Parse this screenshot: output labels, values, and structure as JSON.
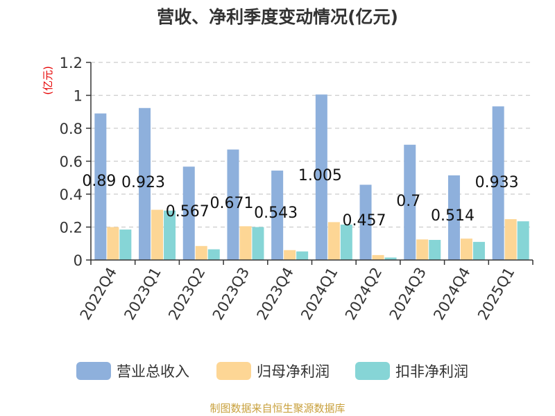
{
  "chart_data": {
    "type": "bar",
    "title": "营收、净利季度变动情况(亿元)",
    "ylabel": "(亿元)",
    "ylim": [
      0,
      1.2
    ],
    "yticks": [
      "0",
      "0.2",
      "0.4",
      "0.6",
      "0.8",
      "1",
      "1.2"
    ],
    "grid": true,
    "legend_position": "bottom",
    "categories": [
      "2022Q4",
      "2023Q1",
      "2023Q2",
      "2023Q3",
      "2023Q4",
      "2024Q1",
      "2024Q2",
      "2024Q3",
      "2024Q4",
      "2025Q1"
    ],
    "series": [
      {
        "name": "营业总收入",
        "color": "#8eb0dc",
        "values": [
          0.89,
          0.923,
          0.567,
          0.671,
          0.543,
          1.005,
          0.457,
          0.7,
          0.514,
          0.933
        ]
      },
      {
        "name": "归母净利润",
        "color": "#fdd695",
        "values": [
          0.2,
          0.305,
          0.085,
          0.205,
          0.06,
          0.23,
          0.03,
          0.125,
          0.13,
          0.248
        ]
      },
      {
        "name": "扣非净利润",
        "color": "#86d5d6",
        "values": [
          0.185,
          0.3,
          0.065,
          0.2,
          0.052,
          0.215,
          0.015,
          0.122,
          0.11,
          0.235
        ]
      }
    ],
    "data_labels": [
      "0.89",
      "0.923",
      "0.567",
      "0.671",
      "0.543",
      "1.005",
      "0.457",
      "0.7",
      "0.514",
      "0.933"
    ]
  },
  "source": "制图数据来自恒生聚源数据库",
  "colors": {
    "axis": "#333333",
    "grid": "#cccccc",
    "ylabel": "#e60000",
    "source": "#c8a03c",
    "title": "#333333"
  }
}
